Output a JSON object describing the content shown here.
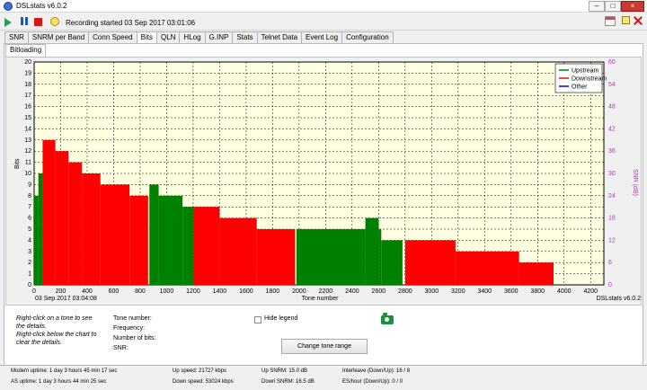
{
  "window": {
    "title": "DSLstats v6.0.2",
    "recording": "Recording started 03 Sep 2017 03:01:06"
  },
  "tabs": [
    "SNR",
    "SNRM per Band",
    "Conn Speed",
    "Bits",
    "QLN",
    "HLog",
    "G.INP",
    "Stats",
    "Telnet Data",
    "Event Log",
    "Configuration"
  ],
  "active_tab": "Bits",
  "subtab": "Bitloading",
  "chart": {
    "timestamp": "03 Sep 2017 03:04:08",
    "watermark": "DSLstats v6.0.2",
    "y_label": "Bits",
    "y2_label": "SNR (dB)",
    "x_label": "Tone number",
    "x_ticks": [
      "0",
      "200",
      "400",
      "600",
      "800",
      "1000",
      "1200",
      "1400",
      "1600",
      "1800",
      "2000",
      "2200",
      "2400",
      "2600",
      "2800",
      "3000",
      "3200",
      "3400",
      "3600",
      "3800",
      "4000",
      "4200"
    ],
    "y_ticks": [
      "0",
      "1",
      "2",
      "3",
      "4",
      "5",
      "6",
      "7",
      "8",
      "9",
      "10",
      "11",
      "12",
      "13",
      "14",
      "15",
      "16",
      "17",
      "18",
      "19",
      "20"
    ],
    "y2_ticks": [
      "0",
      "6",
      "12",
      "18",
      "24",
      "30",
      "36",
      "42",
      "48",
      "54",
      "60"
    ]
  },
  "chart_data": {
    "type": "bar",
    "xlim": [
      0,
      4300
    ],
    "ylim": [
      0,
      20
    ],
    "y2lim": [
      0,
      60
    ],
    "grid": true,
    "legend": "top-right",
    "colors": {
      "upstream": "#008000",
      "downstream": "#ff0000",
      "other": "#0000ff",
      "grid": "#000000",
      "background": "#ffffe1"
    },
    "series": [
      {
        "name": "Upstream",
        "segments": [
          {
            "from": 0,
            "to": 32,
            "bits": 8
          },
          {
            "from": 32,
            "to": 64,
            "bits": 10
          },
          {
            "from": 870,
            "to": 940,
            "bits": 9
          },
          {
            "from": 940,
            "to": 1120,
            "bits": 8
          },
          {
            "from": 1120,
            "to": 1200,
            "bits": 7
          },
          {
            "from": 1980,
            "to": 2500,
            "bits": 5
          },
          {
            "from": 2500,
            "to": 2600,
            "bits": 6
          },
          {
            "from": 2600,
            "to": 2620,
            "bits": 5
          },
          {
            "from": 2620,
            "to": 2780,
            "bits": 4
          }
        ]
      },
      {
        "name": "Downstream",
        "segments": [
          {
            "from": 64,
            "to": 160,
            "bits": 13
          },
          {
            "from": 160,
            "to": 260,
            "bits": 12
          },
          {
            "from": 260,
            "to": 360,
            "bits": 11
          },
          {
            "from": 360,
            "to": 500,
            "bits": 10
          },
          {
            "from": 500,
            "to": 720,
            "bits": 9
          },
          {
            "from": 720,
            "to": 860,
            "bits": 8
          },
          {
            "from": 1200,
            "to": 1400,
            "bits": 7
          },
          {
            "from": 1400,
            "to": 1680,
            "bits": 6
          },
          {
            "from": 1680,
            "to": 1970,
            "bits": 5
          },
          {
            "from": 2800,
            "to": 3180,
            "bits": 4
          },
          {
            "from": 3180,
            "to": 3660,
            "bits": 3
          },
          {
            "from": 3660,
            "to": 3920,
            "bits": 2
          }
        ]
      },
      {
        "name": "Other",
        "segments": []
      }
    ]
  },
  "details": {
    "help": "Right-click on a tone to see the details.\nRight-click below the chart to clear the details.",
    "labels": [
      "Tone number:",
      "Frequency:",
      "Number of bits:",
      "SNR:"
    ],
    "hide_legend": "Hide legend",
    "change_button": "Change tone range"
  },
  "status": {
    "modem_uptime": "Modem uptime: 1 day 3 hours 45 min 17 sec",
    "as_uptime": "AS uptime: 1 day 3 hours 44 min 25 sec",
    "up_speed": "Up speed: 21727 kbps",
    "down_speed": "Down speed: 53024 kbps",
    "up_snrm": "Up SNRM: 15.0 dB",
    "down_snrm": "Down SNRM: 16.5 dB",
    "interleave": "Interleave (Down/Up): 16 / 8",
    "es_hour": "ES/hour (Down/Up): 0 / 0"
  }
}
